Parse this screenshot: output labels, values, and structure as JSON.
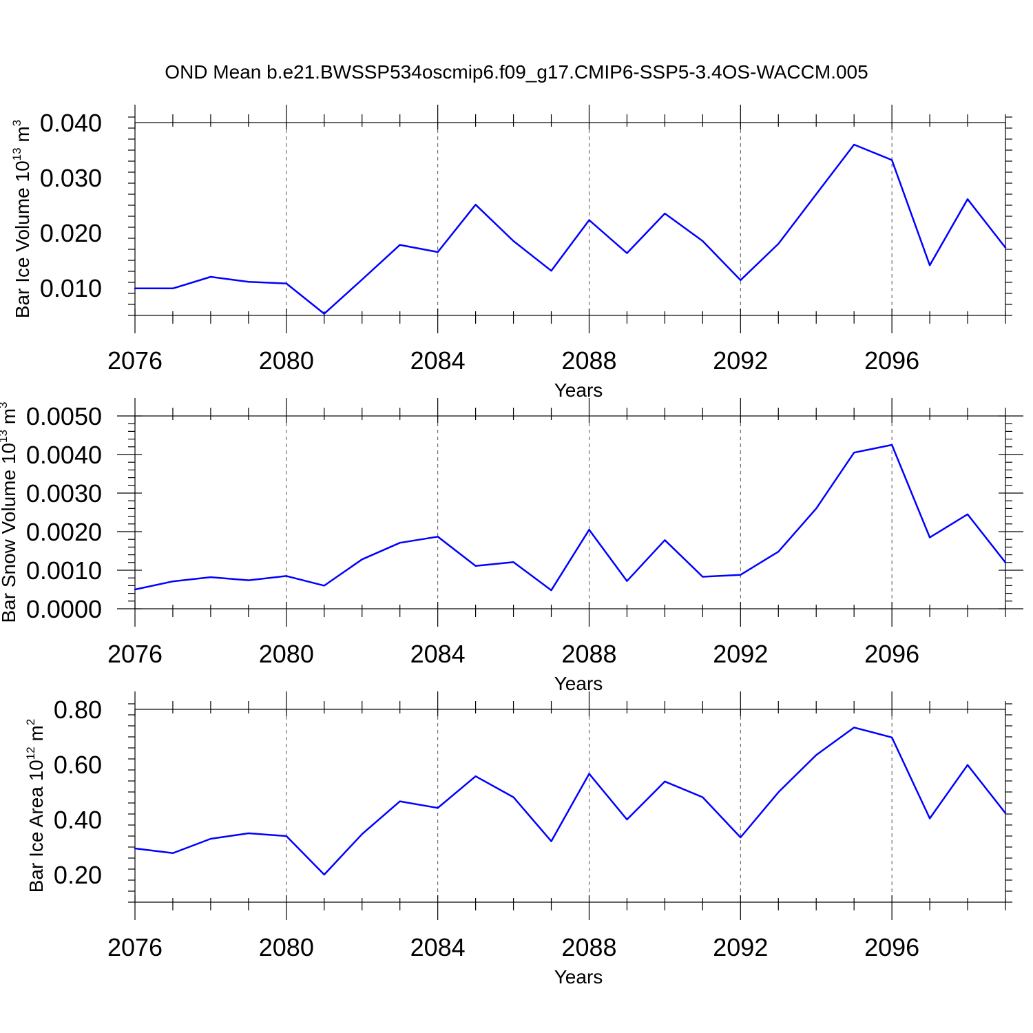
{
  "title": "OND Mean b.e21.BWSSP534oscmip6.f09_g17.CMIP6-SSP5-3.4OS-WACCM.005",
  "line_color": "#0000ff",
  "chart_data": [
    {
      "type": "line",
      "ylabel": {
        "main": "Bar Ice Volume 10",
        "exp": "13",
        "unit": " m",
        "unit_exp": "3"
      },
      "xlabel": "Years",
      "xlim": [
        2076,
        2099
      ],
      "ylim": [
        0.005,
        0.04
      ],
      "yticks": [
        0.01,
        0.02,
        0.03,
        0.04
      ],
      "ytick_labels": [
        "0.010",
        "0.020",
        "0.030",
        "0.040"
      ],
      "xticks": [
        2076,
        2080,
        2084,
        2088,
        2092,
        2096
      ],
      "xtick_labels": [
        "2076",
        "2080",
        "2084",
        "2088",
        "2092",
        "2096"
      ],
      "x": [
        2076,
        2077,
        2078,
        2079,
        2080,
        2081,
        2082,
        2083,
        2084,
        2085,
        2086,
        2087,
        2088,
        2089,
        2090,
        2091,
        2092,
        2093,
        2094,
        2095,
        2096,
        2097,
        2098,
        2099
      ],
      "values": [
        0.0099,
        0.0099,
        0.012,
        0.0111,
        0.0108,
        0.0053,
        0.0115,
        0.0178,
        0.0165,
        0.0251,
        0.0185,
        0.0131,
        0.0223,
        0.0163,
        0.0235,
        0.0185,
        0.0114,
        0.018,
        0.027,
        0.036,
        0.0332,
        0.0141,
        0.0261,
        0.0173
      ]
    },
    {
      "type": "line",
      "ylabel": {
        "main": "Bar Snow Volume 10",
        "exp": "13",
        "unit": " m",
        "unit_exp": "3"
      },
      "xlabel": "Years",
      "xlim": [
        2076,
        2099
      ],
      "ylim": [
        0.0,
        0.005
      ],
      "yticks": [
        0.0,
        0.001,
        0.002,
        0.003,
        0.004,
        0.005
      ],
      "ytick_labels": [
        "0.0000",
        "0.0010",
        "0.0020",
        "0.0030",
        "0.0040",
        "0.0050"
      ],
      "xticks": [
        2076,
        2080,
        2084,
        2088,
        2092,
        2096
      ],
      "xtick_labels": [
        "2076",
        "2080",
        "2084",
        "2088",
        "2092",
        "2096"
      ],
      "x": [
        2076,
        2077,
        2078,
        2079,
        2080,
        2081,
        2082,
        2083,
        2084,
        2085,
        2086,
        2087,
        2088,
        2089,
        2090,
        2091,
        2092,
        2093,
        2094,
        2095,
        2096,
        2097,
        2098,
        2099
      ],
      "values": [
        0.0005,
        0.00071,
        0.00082,
        0.00074,
        0.00085,
        0.0006,
        0.00128,
        0.00171,
        0.00187,
        0.00111,
        0.00121,
        0.00048,
        0.00205,
        0.00072,
        0.00178,
        0.00083,
        0.00088,
        0.00148,
        0.0026,
        0.00405,
        0.00425,
        0.00185,
        0.00245,
        0.0012
      ]
    },
    {
      "type": "line",
      "ylabel": {
        "main": "Bar Ice Area 10",
        "exp": "12",
        "unit": " m",
        "unit_exp": "2"
      },
      "xlabel": "Years",
      "xlim": [
        2076,
        2099
      ],
      "ylim": [
        0.1,
        0.8
      ],
      "yticks": [
        0.2,
        0.4,
        0.6,
        0.8
      ],
      "ytick_labels": [
        "0.20",
        "0.40",
        "0.60",
        "0.80"
      ],
      "xticks": [
        2076,
        2080,
        2084,
        2088,
        2092,
        2096
      ],
      "xtick_labels": [
        "2076",
        "2080",
        "2084",
        "2088",
        "2092",
        "2096"
      ],
      "x": [
        2076,
        2077,
        2078,
        2079,
        2080,
        2081,
        2082,
        2083,
        2084,
        2085,
        2086,
        2087,
        2088,
        2089,
        2090,
        2091,
        2092,
        2093,
        2094,
        2095,
        2096,
        2097,
        2098,
        2099
      ],
      "values": [
        0.295,
        0.278,
        0.33,
        0.35,
        0.34,
        0.2,
        0.347,
        0.466,
        0.442,
        0.557,
        0.481,
        0.321,
        0.566,
        0.4,
        0.538,
        0.481,
        0.335,
        0.499,
        0.634,
        0.734,
        0.698,
        0.404,
        0.598,
        0.423
      ]
    }
  ]
}
